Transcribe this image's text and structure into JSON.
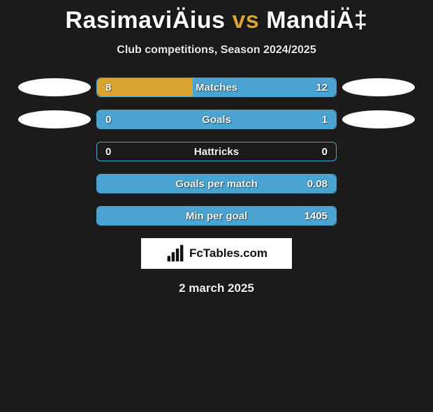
{
  "title": {
    "left": "RasimaviÄius",
    "vs": "vs",
    "right": "MandiÄ‡"
  },
  "subtitle": "Club competitions, Season 2024/2025",
  "date": "2 march 2025",
  "watermark": {
    "text": "FcTables.com"
  },
  "colors": {
    "left_fill": "#d8a42f",
    "right_fill": "#4aa3d1",
    "bar_border": "#4aa3d1",
    "background": "#1b1b1b"
  },
  "stats": [
    {
      "metric": "Matches",
      "left_value": "8",
      "right_value": "12",
      "left_pct": 40,
      "right_pct": 60,
      "left_shape": true,
      "right_shape": true
    },
    {
      "metric": "Goals",
      "left_value": "0",
      "right_value": "1",
      "left_pct": 0,
      "right_pct": 100,
      "left_shape": true,
      "right_shape": true
    },
    {
      "metric": "Hattricks",
      "left_value": "0",
      "right_value": "0",
      "left_pct": 0,
      "right_pct": 0,
      "left_shape": false,
      "right_shape": false
    },
    {
      "metric": "Goals per match",
      "left_value": "",
      "right_value": "0.08",
      "left_pct": 0,
      "right_pct": 100,
      "left_shape": false,
      "right_shape": false
    },
    {
      "metric": "Min per goal",
      "left_value": "",
      "right_value": "1405",
      "left_pct": 0,
      "right_pct": 100,
      "left_shape": false,
      "right_shape": false
    }
  ]
}
